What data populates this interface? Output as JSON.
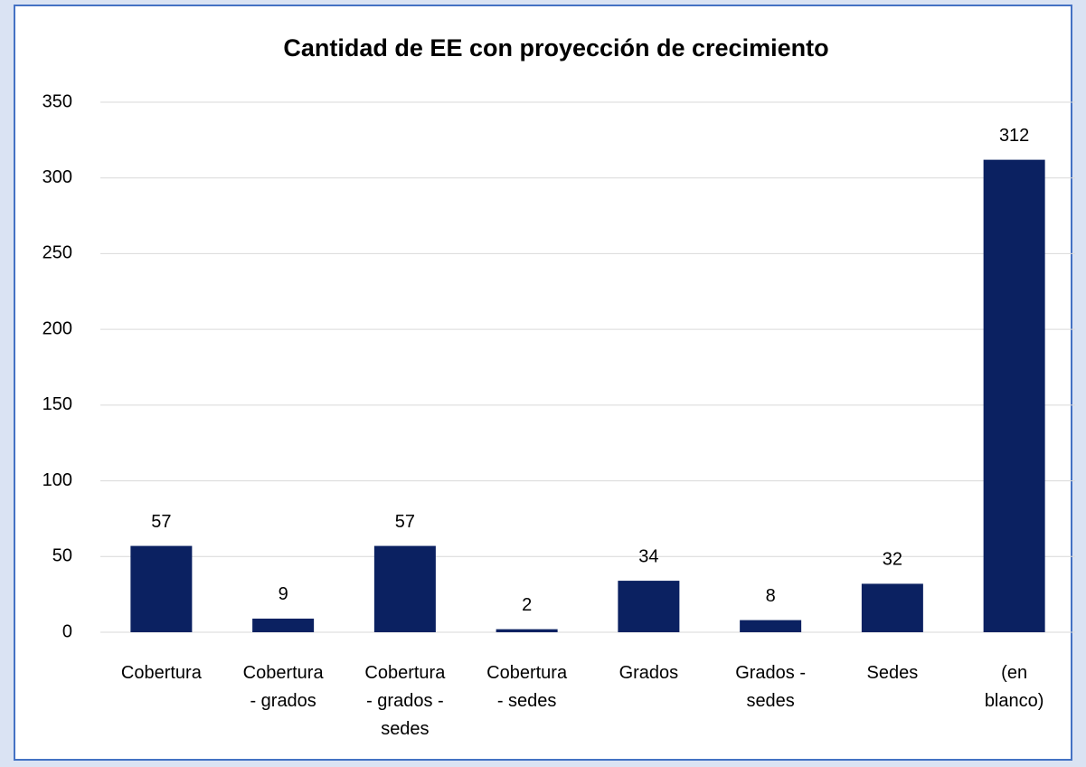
{
  "chart_data": {
    "type": "bar",
    "title": "Cantidad de EE con proyección de crecimiento",
    "categories": [
      "Cobertura",
      "Cobertura - grados",
      "Cobertura - grados - sedes",
      "Cobertura - sedes",
      "Grados",
      "Grados - sedes",
      "Sedes",
      "(en blanco)"
    ],
    "values": [
      57,
      9,
      57,
      2,
      34,
      8,
      32,
      312
    ],
    "color": "#0b2161",
    "ylim": [
      0,
      350
    ],
    "yticks": [
      0,
      50,
      100,
      150,
      200,
      250,
      300,
      350
    ],
    "grid": true
  }
}
